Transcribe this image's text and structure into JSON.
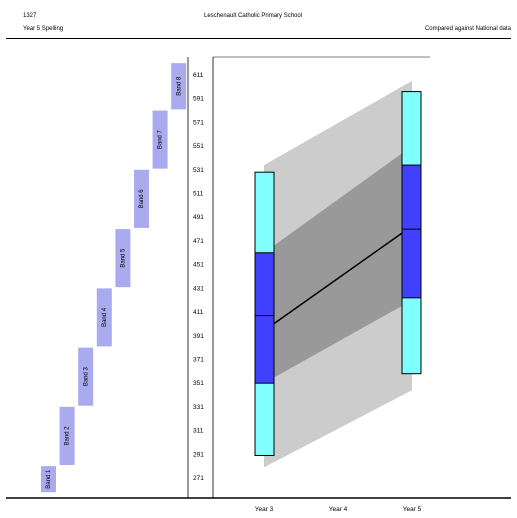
{
  "header": {
    "code": "1327",
    "school": "Leschenault Catholic Primary School",
    "title": "Year 5 Spelling",
    "comparison": "Compared against National data"
  },
  "chart_data": {
    "type": "box-range",
    "title": "Year 5 Spelling",
    "y_ticks": [
      611,
      591,
      571,
      551,
      531,
      511,
      491,
      471,
      451,
      431,
      411,
      391,
      371,
      351,
      331,
      311,
      291,
      271
    ],
    "ylim": [
      260,
      621
    ],
    "bands": [
      {
        "label": "Band 1",
        "min": 259,
        "max": 281
      },
      {
        "label": "Band 2",
        "min": 282,
        "max": 331
      },
      {
        "label": "Band 3",
        "min": 332,
        "max": 381
      },
      {
        "label": "Band 4",
        "min": 382,
        "max": 431
      },
      {
        "label": "Band 5",
        "min": 432,
        "max": 481
      },
      {
        "label": "Band 6",
        "min": 482,
        "max": 531
      },
      {
        "label": "Band 7",
        "min": 532,
        "max": 581
      },
      {
        "label": "Band 8",
        "min": 582,
        "max": 621
      }
    ],
    "categories": [
      "Year 3",
      "Year 4",
      "Year 5"
    ],
    "national_range": {
      "outer": {
        "year3": [
          280,
          535
        ],
        "year5": [
          345,
          606
        ]
      },
      "inner": {
        "year3": [
          351,
          461
        ],
        "year5": [
          421,
          551
        ]
      }
    },
    "school_boxes": [
      {
        "year": "Year 3",
        "lower": 290,
        "p20": 351,
        "median": 408,
        "p80": 461,
        "upper": 529
      },
      {
        "year": "Year 5",
        "lower": 359,
        "p20": 423,
        "median": 481,
        "p80": 535,
        "upper": 597
      }
    ],
    "colors": {
      "band": "#aaaaee",
      "outer_range": "#cccccc",
      "inner_range": "#999999",
      "box_outer": "#80ffff",
      "box_inner": "#4040ff",
      "median_line": "#000000"
    }
  }
}
